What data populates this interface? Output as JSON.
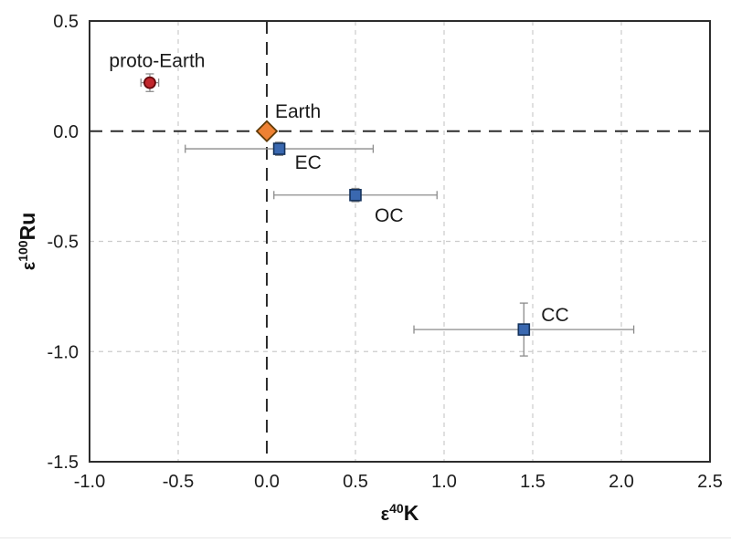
{
  "figure": {
    "background": "#ffffff",
    "border_color": "#2d2d2d",
    "scan_artifact_line_color": "#e7e7e7"
  },
  "chart_data": {
    "type": "scatter",
    "title": "",
    "xlabel": {
      "epsilon": "ε",
      "isotope": "40",
      "element": "K"
    },
    "ylabel": {
      "epsilon": "ε",
      "isotope": "100",
      "element": "Ru"
    },
    "xlim": [
      -1.0,
      2.5
    ],
    "ylim": [
      -1.5,
      0.5
    ],
    "x_tick_values": [
      -1.0,
      -0.5,
      0.0,
      0.5,
      1.0,
      1.5,
      2.0,
      2.5
    ],
    "x_tick_labels": [
      "-1.0",
      "-0.5",
      "0.0",
      "0.5",
      "1.0",
      "1.5",
      "2.0",
      "2.5"
    ],
    "y_tick_values": [
      0.5,
      0.0,
      -0.5,
      -1.0,
      -1.5
    ],
    "y_tick_labels": [
      "0.5",
      "0.0",
      "-0.5",
      "-1.0",
      "-1.5"
    ],
    "grid": {
      "on": true,
      "vertical_at": [
        -0.5,
        0.5,
        1.0,
        1.5,
        2.0
      ],
      "horizontal_at": [
        -0.5,
        -1.0
      ],
      "color": "#cccccc",
      "dash": "5 5"
    },
    "zero_lines": {
      "vertical_x": 0.0,
      "horizontal_y": 0.0,
      "color": "#2d2d2d",
      "dash": "14 9"
    },
    "errorbar_color": "#8c8c8c",
    "legend_position": "none",
    "series": [
      {
        "name": "proto-Earth",
        "label": "proto-Earth",
        "marker": "circle",
        "fill": "#c1272d",
        "edge": "#66090c",
        "x": -0.66,
        "y": 0.22,
        "xerr": 0.05,
        "yerr": 0.04,
        "label_anchor": "middle",
        "label_dx": 8,
        "label_dy": -17
      },
      {
        "name": "Earth",
        "label": "Earth",
        "marker": "diamond",
        "fill": "#ee8133",
        "edge": "#5f3a06",
        "x": 0.0,
        "y": 0.0,
        "xerr": null,
        "yerr": null,
        "label_anchor": "start",
        "label_dx": 9,
        "label_dy": -15
      },
      {
        "name": "EC",
        "label": "EC",
        "marker": "square",
        "fill": "#3a68b0",
        "edge": "#14325c",
        "x": 0.07,
        "y": -0.08,
        "xerr": 0.53,
        "yerr": 0.03,
        "label_anchor": "start",
        "label_dx": 17,
        "label_dy": 22
      },
      {
        "name": "OC",
        "label": "OC",
        "marker": "square",
        "fill": "#3a68b0",
        "edge": "#14325c",
        "x": 0.5,
        "y": -0.29,
        "xerr": 0.46,
        "yerr": 0.03,
        "label_anchor": "start",
        "label_dx": 21,
        "label_dy": 29
      },
      {
        "name": "CC",
        "label": "CC",
        "marker": "square",
        "fill": "#3a68b0",
        "edge": "#14325c",
        "x": 1.45,
        "y": -0.9,
        "xerr": 0.62,
        "yerr": 0.12,
        "label_anchor": "start",
        "label_dx": 19,
        "label_dy": -9
      }
    ]
  }
}
